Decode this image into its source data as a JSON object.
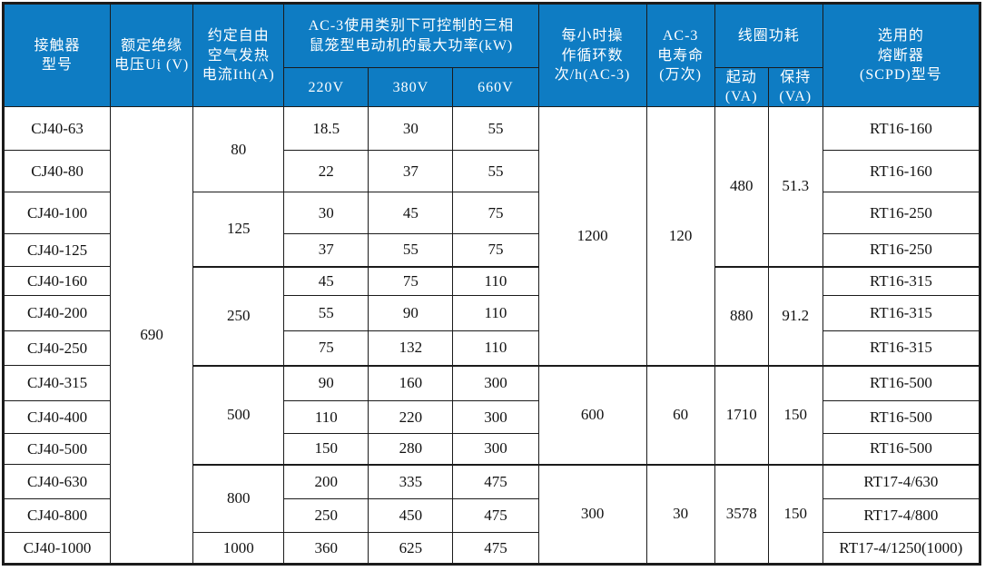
{
  "colors": {
    "header_bg": "#0e7cc3",
    "header_text": "#ffffff",
    "border": "#1b1b1b",
    "text": "#111111"
  },
  "table": {
    "header": {
      "model": "接触器\n型号",
      "ui": "额定绝缘\n电压Ui (V)",
      "ith": "约定自由\n空气发热\n电流Ith(A)",
      "power_group": "AC-3使用类别下可控制的三相\n鼠笼型电动机的最大功率(kW)",
      "power_220": "220V",
      "power_380": "380V",
      "power_660": "660V",
      "ops": "每小时操\n作循环数\n次/h(AC-3)",
      "life": "AC-3\n电寿命\n(万次)",
      "coil_group": "线圈功耗",
      "coil_start": "起动\n(VA)",
      "coil_hold": "保持\n(VA)",
      "fuse": "选用的\n熔断器\n(SCPD)型号"
    },
    "body_rows": [
      {
        "cells": [
          {
            "t": "CJ40-63",
            "n": "model-cell"
          },
          {
            "t": "690",
            "n": "ui-voltage-cell",
            "rs": 13
          },
          {
            "t": "80",
            "n": "ith-current-cell",
            "rs": 2
          },
          {
            "t": "18.5",
            "n": "power-220v-cell"
          },
          {
            "t": "30",
            "n": "power-380v-cell"
          },
          {
            "t": "55",
            "n": "power-660v-cell"
          },
          {
            "t": "1200",
            "n": "ops-cycles-cell",
            "rs": 7
          },
          {
            "t": "120",
            "n": "electrical-life-cell",
            "rs": 7
          },
          {
            "t": "480",
            "n": "coil-start-cell",
            "rs": 4
          },
          {
            "t": "51.3",
            "n": "coil-hold-cell",
            "rs": 4
          },
          {
            "t": "RT16-160",
            "n": "fuse-model-cell"
          }
        ]
      },
      {
        "cells": [
          {
            "t": "CJ40-80",
            "n": "model-cell"
          },
          {
            "t": "22",
            "n": "power-220v-cell"
          },
          {
            "t": "37",
            "n": "power-380v-cell"
          },
          {
            "t": "55",
            "n": "power-660v-cell"
          },
          {
            "t": "RT16-160",
            "n": "fuse-model-cell"
          }
        ]
      },
      {
        "cells": [
          {
            "t": "CJ40-100",
            "n": "model-cell"
          },
          {
            "t": "125",
            "n": "ith-current-cell",
            "rs": 2
          },
          {
            "t": "30",
            "n": "power-220v-cell"
          },
          {
            "t": "45",
            "n": "power-380v-cell"
          },
          {
            "t": "75",
            "n": "power-660v-cell"
          },
          {
            "t": "RT16-250",
            "n": "fuse-model-cell"
          }
        ]
      },
      {
        "cells": [
          {
            "t": "CJ40-125",
            "n": "model-cell"
          },
          {
            "t": "37",
            "n": "power-220v-cell"
          },
          {
            "t": "55",
            "n": "power-380v-cell"
          },
          {
            "t": "75",
            "n": "power-660v-cell"
          },
          {
            "t": "RT16-250",
            "n": "fuse-model-cell"
          }
        ]
      },
      {
        "sep": true,
        "cells": [
          {
            "t": "CJ40-160",
            "n": "model-cell"
          },
          {
            "t": "250",
            "n": "ith-current-cell",
            "rs": 3
          },
          {
            "t": "45",
            "n": "power-220v-cell"
          },
          {
            "t": "75",
            "n": "power-380v-cell"
          },
          {
            "t": "110",
            "n": "power-660v-cell"
          },
          {
            "t": "880",
            "n": "coil-start-cell",
            "rs": 3
          },
          {
            "t": "91.2",
            "n": "coil-hold-cell",
            "rs": 3
          },
          {
            "t": "RT16-315",
            "n": "fuse-model-cell"
          }
        ]
      },
      {
        "cells": [
          {
            "t": "CJ40-200",
            "n": "model-cell"
          },
          {
            "t": "55",
            "n": "power-220v-cell"
          },
          {
            "t": "90",
            "n": "power-380v-cell"
          },
          {
            "t": "110",
            "n": "power-660v-cell"
          },
          {
            "t": "RT16-315",
            "n": "fuse-model-cell"
          }
        ]
      },
      {
        "cells": [
          {
            "t": "CJ40-250",
            "n": "model-cell"
          },
          {
            "t": "75",
            "n": "power-220v-cell"
          },
          {
            "t": "132",
            "n": "power-380v-cell"
          },
          {
            "t": "110",
            "n": "power-660v-cell"
          },
          {
            "t": "RT16-315",
            "n": "fuse-model-cell"
          }
        ]
      },
      {
        "sep": true,
        "cells": [
          {
            "t": "CJ40-315",
            "n": "model-cell"
          },
          {
            "t": "500",
            "n": "ith-current-cell",
            "rs": 3
          },
          {
            "t": "90",
            "n": "power-220v-cell"
          },
          {
            "t": "160",
            "n": "power-380v-cell"
          },
          {
            "t": "300",
            "n": "power-660v-cell"
          },
          {
            "t": "600",
            "n": "ops-cycles-cell",
            "rs": 3
          },
          {
            "t": "60",
            "n": "electrical-life-cell",
            "rs": 3
          },
          {
            "t": "1710",
            "n": "coil-start-cell",
            "rs": 3
          },
          {
            "t": "150",
            "n": "coil-hold-cell",
            "rs": 3
          },
          {
            "t": "RT16-500",
            "n": "fuse-model-cell"
          }
        ]
      },
      {
        "cells": [
          {
            "t": "CJ40-400",
            "n": "model-cell"
          },
          {
            "t": "110",
            "n": "power-220v-cell"
          },
          {
            "t": "220",
            "n": "power-380v-cell"
          },
          {
            "t": "300",
            "n": "power-660v-cell"
          },
          {
            "t": "RT16-500",
            "n": "fuse-model-cell"
          }
        ]
      },
      {
        "cells": [
          {
            "t": "CJ40-500",
            "n": "model-cell"
          },
          {
            "t": "150",
            "n": "power-220v-cell"
          },
          {
            "t": "280",
            "n": "power-380v-cell"
          },
          {
            "t": "300",
            "n": "power-660v-cell"
          },
          {
            "t": "RT16-500",
            "n": "fuse-model-cell"
          }
        ]
      },
      {
        "sep": true,
        "cells": [
          {
            "t": "CJ40-630",
            "n": "model-cell"
          },
          {
            "t": "800",
            "n": "ith-current-cell",
            "rs": 2
          },
          {
            "t": "200",
            "n": "power-220v-cell"
          },
          {
            "t": "335",
            "n": "power-380v-cell"
          },
          {
            "t": "475",
            "n": "power-660v-cell"
          },
          {
            "t": "300",
            "n": "ops-cycles-cell",
            "rs": 3
          },
          {
            "t": "30",
            "n": "electrical-life-cell",
            "rs": 3
          },
          {
            "t": "3578",
            "n": "coil-start-cell",
            "rs": 3
          },
          {
            "t": "150",
            "n": "coil-hold-cell",
            "rs": 3
          },
          {
            "t": "RT17-4/630",
            "n": "fuse-model-cell"
          }
        ]
      },
      {
        "cells": [
          {
            "t": "CJ40-800",
            "n": "model-cell"
          },
          {
            "t": "250",
            "n": "power-220v-cell"
          },
          {
            "t": "450",
            "n": "power-380v-cell"
          },
          {
            "t": "475",
            "n": "power-660v-cell"
          },
          {
            "t": "RT17-4/800",
            "n": "fuse-model-cell"
          }
        ]
      },
      {
        "cells": [
          {
            "t": "CJ40-1000",
            "n": "model-cell"
          },
          {
            "t": "1000",
            "n": "ith-current-cell"
          },
          {
            "t": "360",
            "n": "power-220v-cell"
          },
          {
            "t": "625",
            "n": "power-380v-cell"
          },
          {
            "t": "475",
            "n": "power-660v-cell"
          },
          {
            "t": "RT17-4/1250(1000)",
            "n": "fuse-model-cell"
          }
        ]
      }
    ]
  }
}
